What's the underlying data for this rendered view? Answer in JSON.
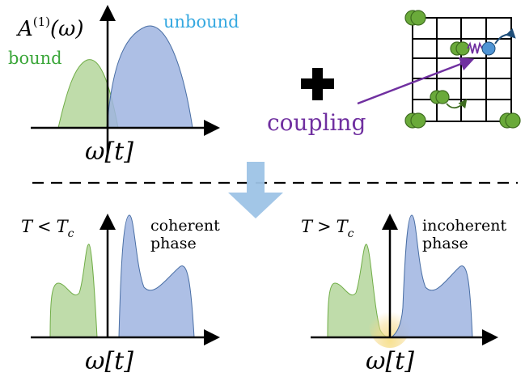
{
  "top_plot": {
    "ylabel": "A(1)(ω)",
    "ylabel_base": "A",
    "ylabel_sup": "(1)",
    "ylabel_arg": "(ω)",
    "xlabel": "ω[t]",
    "bound_label": "bound",
    "unbound_label": "unbound"
  },
  "coupling_label": "coupling",
  "bottom_left": {
    "condition": "T < Tc",
    "condition_T": "T",
    "condition_op": "<",
    "condition_Tc": "T",
    "condition_sub": "c",
    "phase_line1": "coherent",
    "phase_line2": "phase",
    "xlabel": "ω[t]"
  },
  "bottom_right": {
    "condition": "T > Tc",
    "condition_T": "T",
    "condition_op": ">",
    "condition_Tc": "T",
    "condition_sub": "c",
    "phase_line1": "incoherent",
    "phase_line2": "phase",
    "xlabel": "ω[t]"
  },
  "colors": {
    "bound": "#a9d08e",
    "bound_edge": "#70ad47",
    "unbound": "#9fb4e0",
    "unbound_edge": "#4a6fa5",
    "bound_text": "#3aa639",
    "unbound_text": "#35a8e0",
    "coupling": "#7030a0",
    "down_arrow": "#9dc3e6",
    "lattice_dot": "#6aaa3a",
    "lattice_dot_edge": "#3d6b1f",
    "particle": "#4f94d4"
  }
}
